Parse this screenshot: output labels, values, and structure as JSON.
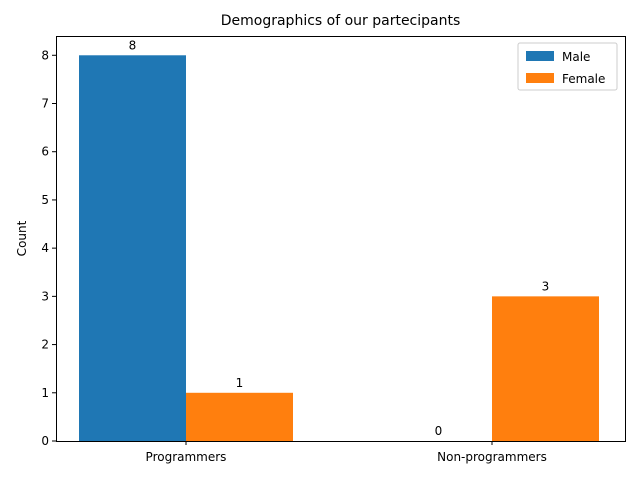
{
  "chart_data": {
    "type": "bar",
    "title": "Demographics of our partecipants",
    "xlabel": "",
    "ylabel": "Count",
    "categories": [
      "Programmers",
      "Non-programmers"
    ],
    "series": [
      {
        "name": "Male",
        "values": [
          8,
          0
        ],
        "color": "#1f77b4"
      },
      {
        "name": "Female",
        "values": [
          1,
          3
        ],
        "color": "#ff7f0e"
      }
    ],
    "ylim": [
      0,
      8.4
    ],
    "yticks": [
      0,
      1,
      2,
      3,
      4,
      5,
      6,
      7,
      8
    ],
    "grid": false,
    "legend": "top-right",
    "data_labels": true
  }
}
